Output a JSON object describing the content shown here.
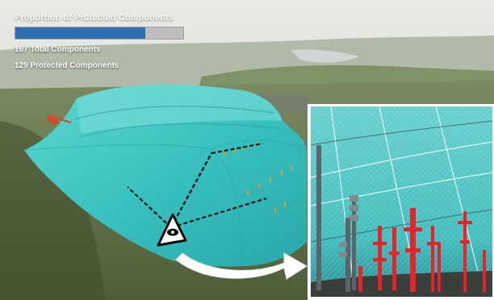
{
  "overlay": {
    "title": "Proportion of Protected Components",
    "total_components_label": "167 Total Components",
    "protected_components_label": "129 Protected Components",
    "progress_fraction": 0.7725,
    "bar_fill_color": "#2e6fb0",
    "bar_track_color": "#bdbdbd"
  },
  "scene": {
    "icons": [
      "eye-icon",
      "curved-arrow-icon"
    ],
    "enclosure_color": "#3fbfbe",
    "component_highlight_color": "#e3242b"
  }
}
